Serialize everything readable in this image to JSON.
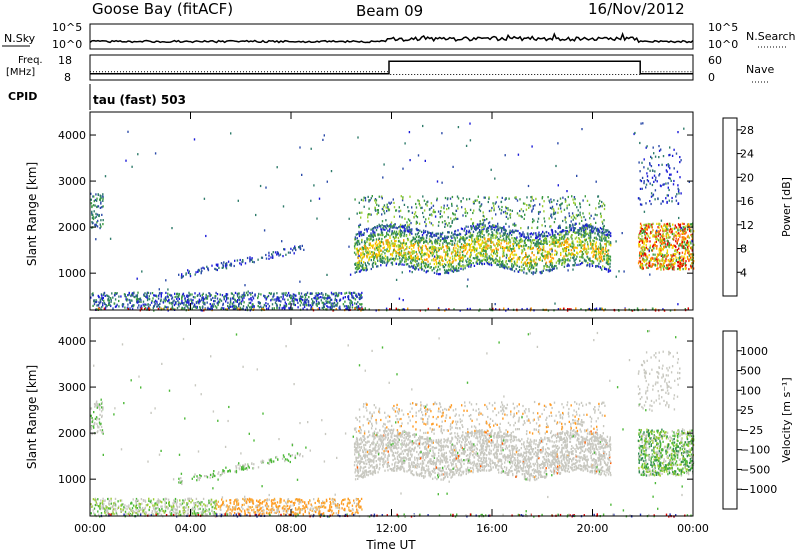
{
  "header": {
    "station": "Goose Bay (fitACF)",
    "beam": "Beam 09",
    "date": "16/Nov/2012"
  },
  "sky_panel": {
    "left_label": "N.Sky",
    "left_ticks": [
      "10^5",
      "10^0"
    ],
    "right_label": "N.Search",
    "right_ticks": [
      "10^5",
      "10^0"
    ]
  },
  "freq_panel": {
    "left_label_1": "Freq.",
    "left_label_2": "[MHz]",
    "left_ticks": [
      "18",
      "8"
    ],
    "right_label": "Nave",
    "right_ticks": [
      "60",
      "0"
    ]
  },
  "cpid": {
    "label": "CPID",
    "text": "tau (fast) 503"
  },
  "colors": {
    "power_scale": [
      "#1a1ad8",
      "#2a4aa8",
      "#2e7b6a",
      "#3a9a40",
      "#9acd32",
      "#f5d800",
      "#ff9900",
      "#ff5000",
      "#e00000"
    ],
    "velocity_scale": [
      "#2030b0",
      "#2060a0",
      "#2e8a50",
      "#4cb838",
      "#c8c8c0",
      "#c8c8c0",
      "#ff9a20",
      "#ff5a00",
      "#e00000"
    ],
    "background": "#ffffff"
  },
  "chart_data": [
    {
      "type": "line",
      "name": "sky-search-counts",
      "x_range_hours": [
        0,
        24
      ],
      "y_scale": "log",
      "y_ticks": [
        "10^0",
        "10^5"
      ]
    },
    {
      "type": "line",
      "name": "frequency-nave",
      "x_range_hours": [
        0,
        24
      ],
      "series": [
        {
          "label": "Freq.",
          "ylim": [
            8,
            18
          ],
          "points_hours": [
            [
              0,
              10
            ],
            [
              11.9,
              10
            ],
            [
              11.9,
              16
            ],
            [
              21.9,
              16
            ],
            [
              21.9,
              10
            ],
            [
              24,
              10
            ]
          ]
        },
        {
          "label": "Nave",
          "ylim": [
            0,
            60
          ],
          "points_hours": [
            [
              0,
              18
            ],
            [
              11.9,
              18
            ],
            [
              11.9,
              10
            ],
            [
              21.9,
              10
            ],
            [
              21.9,
              18
            ],
            [
              24,
              18
            ]
          ]
        }
      ]
    },
    {
      "type": "heatmap",
      "name": "power",
      "xlabel": "",
      "ylabel": "Slant Range [km]",
      "x_tick_labels": [
        "00:00",
        "04:00",
        "08:00",
        "12:00",
        "16:00",
        "20:00",
        "00:00"
      ],
      "y_tick_labels": [
        "1000",
        "2000",
        "3000",
        "4000"
      ],
      "ylim": [
        200,
        4500
      ],
      "colorbar": {
        "label": "Power [dB]",
        "ticks": [
          "4",
          "8",
          "12",
          "16",
          "20",
          "24",
          "28"
        ],
        "range": [
          0,
          30
        ]
      }
    },
    {
      "type": "heatmap",
      "name": "velocity",
      "xlabel": "Time UT",
      "ylabel": "Slant Range [km]",
      "x_tick_labels": [
        "00:00",
        "04:00",
        "08:00",
        "12:00",
        "16:00",
        "20:00",
        "00:00"
      ],
      "y_tick_labels": [
        "1000",
        "2000",
        "3000",
        "4000"
      ],
      "ylim": [
        200,
        4500
      ],
      "colorbar": {
        "label": "Velocity [m s⁻¹]",
        "ticks": [
          "1000",
          "500",
          "100",
          "25",
          "−25",
          "−100",
          "−500",
          "−1000"
        ]
      }
    }
  ]
}
